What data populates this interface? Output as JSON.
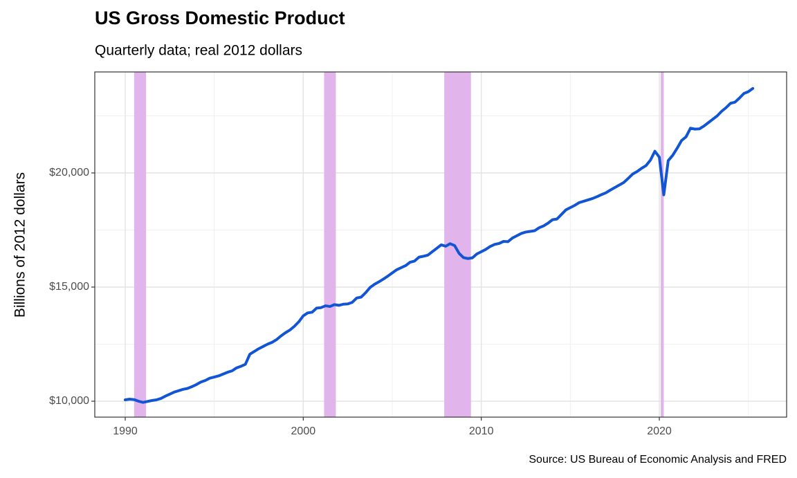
{
  "chart_data": {
    "type": "line",
    "title": "US Gross Domestic Product",
    "subtitle": "Quarterly data; real 2012 dollars",
    "y_label": "Billions of 2012 dollars",
    "source": "Source: US Bureau of Economic Analysis and FRED",
    "color": "#1155d4",
    "recession_color": "#e2b4ec",
    "grid": true,
    "xlim": [
      1988.29,
      2027.15
    ],
    "ylim": [
      9303,
      24424
    ],
    "xticks": [
      1990,
      2000,
      2010,
      2020
    ],
    "yticks": [
      {
        "value": 10000,
        "label": "$10,000"
      },
      {
        "value": 15000,
        "label": "$15,000"
      },
      {
        "value": 20000,
        "label": "$20,000"
      }
    ],
    "recessions": [
      {
        "start": 1990.5,
        "end": 1991.17
      },
      {
        "start": 2001.17,
        "end": 2001.83
      },
      {
        "start": 2007.92,
        "end": 2009.42
      },
      {
        "start": 2020.08,
        "end": 2020.25
      }
    ],
    "x": [
      1990,
      1990.25,
      1990.5,
      1990.75,
      1991,
      1991.25,
      1991.5,
      1991.75,
      1992,
      1992.25,
      1992.5,
      1992.75,
      1993,
      1993.25,
      1993.5,
      1993.75,
      1994,
      1994.25,
      1994.5,
      1994.75,
      1995,
      1995.25,
      1995.5,
      1995.75,
      1996,
      1996.25,
      1996.5,
      1996.75,
      1997,
      1997.25,
      1997.5,
      1997.75,
      1998,
      1998.25,
      1998.5,
      1998.75,
      1999,
      1999.25,
      1999.5,
      1999.75,
      2000,
      2000.25,
      2000.5,
      2000.75,
      2001,
      2001.25,
      2001.5,
      2001.75,
      2002,
      2002.25,
      2002.5,
      2002.75,
      2003,
      2003.25,
      2003.5,
      2003.75,
      2004,
      2004.25,
      2004.5,
      2004.75,
      2005,
      2005.25,
      2005.5,
      2005.75,
      2006,
      2006.25,
      2006.5,
      2006.75,
      2007,
      2007.25,
      2007.5,
      2007.75,
      2008,
      2008.25,
      2008.5,
      2008.75,
      2009,
      2009.25,
      2009.5,
      2009.75,
      2010,
      2010.25,
      2010.5,
      2010.75,
      2011,
      2011.25,
      2011.5,
      2011.75,
      2012,
      2012.25,
      2012.5,
      2012.75,
      2013,
      2013.25,
      2013.5,
      2013.75,
      2014,
      2014.25,
      2014.5,
      2014.75,
      2015,
      2015.25,
      2015.5,
      2015.75,
      2016,
      2016.25,
      2016.5,
      2016.75,
      2017,
      2017.25,
      2017.5,
      2017.75,
      2018,
      2018.25,
      2018.5,
      2018.75,
      2019,
      2019.25,
      2019.5,
      2019.75,
      2020,
      2020.25,
      2020.5,
      2020.75,
      2021,
      2021.25,
      2021.5,
      2021.75,
      2022,
      2022.25,
      2022.5,
      2022.75,
      2023,
      2023.25,
      2023.5,
      2023.75,
      2024,
      2024.25,
      2024.5,
      2024.75,
      2025,
      2025.25
    ],
    "values": [
      10060,
      10090,
      10070,
      10000,
      9950,
      9990,
      10030,
      10060,
      10120,
      10220,
      10310,
      10400,
      10460,
      10520,
      10560,
      10640,
      10730,
      10840,
      10910,
      11010,
      11060,
      11110,
      11190,
      11270,
      11330,
      11460,
      11530,
      11620,
      12060,
      12180,
      12300,
      12400,
      12500,
      12580,
      12700,
      12860,
      13000,
      13120,
      13280,
      13480,
      13740,
      13870,
      13900,
      14080,
      14100,
      14180,
      14150,
      14230,
      14200,
      14250,
      14260,
      14330,
      14520,
      14560,
      14750,
      14980,
      15120,
      15230,
      15350,
      15480,
      15620,
      15760,
      15850,
      15940,
      16090,
      16140,
      16310,
      16350,
      16400,
      16550,
      16700,
      16850,
      16790,
      16900,
      16820,
      16480,
      16290,
      16250,
      16280,
      16450,
      16550,
      16650,
      16780,
      16870,
      16910,
      17000,
      16990,
      17150,
      17250,
      17350,
      17410,
      17440,
      17470,
      17600,
      17680,
      17800,
      17950,
      17980,
      18180,
      18380,
      18480,
      18580,
      18700,
      18760,
      18820,
      18880,
      18960,
      19050,
      19130,
      19250,
      19360,
      19470,
      19580,
      19760,
      19950,
      20060,
      20200,
      20320,
      20560,
      20950,
      20690,
      19040,
      20540,
      20770,
      21080,
      21420,
      21580,
      21960,
      21920,
      21930,
      22050,
      22200,
      22350,
      22500,
      22700,
      22860,
      23050,
      23100,
      23280,
      23480,
      23560,
      23700
    ]
  }
}
